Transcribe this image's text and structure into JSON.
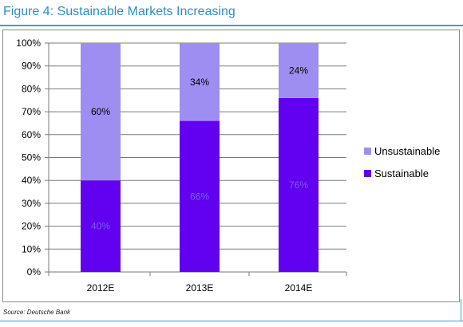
{
  "figure": {
    "title": "Figure 4: Sustainable Markets Increasing",
    "source": "Source: Deutsche Bank"
  },
  "colors": {
    "unsustainable": "#9f8ef2",
    "sustainable": "#6200f0",
    "accent": "#2f8dc2"
  },
  "chart_data": {
    "type": "bar",
    "stacked": true,
    "categories": [
      "2012E",
      "2013E",
      "2014E"
    ],
    "series": [
      {
        "name": "Sustainable",
        "values": [
          40,
          66,
          76
        ],
        "labels": [
          "40%",
          "66%",
          "76%"
        ]
      },
      {
        "name": "Unsustainable",
        "values": [
          60,
          34,
          24
        ],
        "labels": [
          "60%",
          "34%",
          "24%"
        ]
      }
    ],
    "ylim": [
      0,
      100
    ],
    "yticks": [
      "0%",
      "10%",
      "20%",
      "30%",
      "40%",
      "50%",
      "60%",
      "70%",
      "80%",
      "90%",
      "100%"
    ],
    "grid": true,
    "legend": {
      "position": "right",
      "entries": [
        "Unsustainable",
        "Sustainable"
      ]
    }
  }
}
